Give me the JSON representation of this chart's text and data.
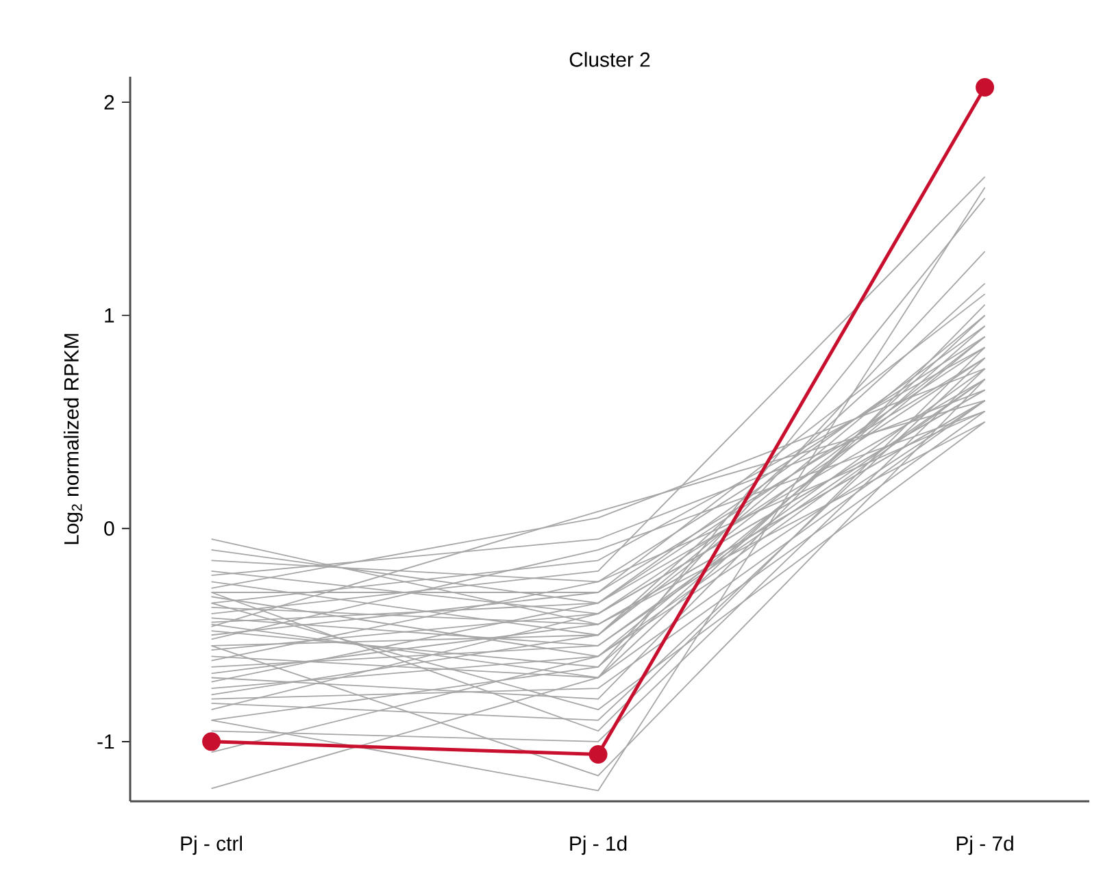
{
  "chart_data": {
    "type": "line",
    "title": "Cluster 2",
    "ylabel": "Log$_{2}$ normalized RPKM",
    "categories": [
      "Pj - ctrl",
      "Pj - 1d",
      "Pj - 7d"
    ],
    "ylim": [
      -1.28,
      2.12
    ],
    "yticks": [
      -1,
      0,
      1,
      2
    ],
    "grid": false,
    "line_style": "solid",
    "series": [
      {
        "color": "#a6a6a6",
        "values": [
          -0.05,
          -0.45,
          0.6
        ]
      },
      {
        "color": "#a6a6a6",
        "values": [
          -0.1,
          -0.35,
          0.7
        ]
      },
      {
        "color": "#a6a6a6",
        "values": [
          -0.15,
          -0.25,
          0.55
        ]
      },
      {
        "color": "#a6a6a6",
        "values": [
          -0.2,
          -0.4,
          0.8
        ]
      },
      {
        "color": "#a6a6a6",
        "values": [
          -0.22,
          -0.05,
          0.65
        ]
      },
      {
        "color": "#a6a6a6",
        "values": [
          -0.25,
          -0.5,
          0.9
        ]
      },
      {
        "color": "#a6a6a6",
        "values": [
          -0.28,
          0.05,
          0.75
        ]
      },
      {
        "color": "#a6a6a6",
        "values": [
          -0.3,
          -0.3,
          1.1
        ]
      },
      {
        "color": "#a6a6a6",
        "values": [
          -0.32,
          -0.6,
          0.6
        ]
      },
      {
        "color": "#a6a6a6",
        "values": [
          -0.35,
          -0.15,
          0.85
        ]
      },
      {
        "color": "#a6a6a6",
        "values": [
          -0.37,
          -0.45,
          0.5
        ]
      },
      {
        "color": "#a6a6a6",
        "values": [
          -0.4,
          -0.2,
          1.65
        ]
      },
      {
        "color": "#a6a6a6",
        "values": [
          -0.42,
          -0.55,
          0.7
        ]
      },
      {
        "color": "#a6a6a6",
        "values": [
          -0.44,
          -0.35,
          0.95
        ]
      },
      {
        "color": "#a6a6a6",
        "values": [
          -0.46,
          0.08,
          0.6
        ]
      },
      {
        "color": "#a6a6a6",
        "values": [
          -0.48,
          -0.65,
          1.3
        ]
      },
      {
        "color": "#a6a6a6",
        "values": [
          -0.5,
          -0.3,
          0.8
        ]
      },
      {
        "color": "#a6a6a6",
        "values": [
          -0.52,
          -0.1,
          0.55
        ]
      },
      {
        "color": "#a6a6a6",
        "values": [
          -0.55,
          -0.5,
          1.0
        ]
      },
      {
        "color": "#a6a6a6",
        "values": [
          -0.57,
          -0.4,
          0.65
        ]
      },
      {
        "color": "#a6a6a6",
        "values": [
          -0.6,
          -0.7,
          1.55
        ]
      },
      {
        "color": "#a6a6a6",
        "values": [
          -0.62,
          -0.25,
          0.9
        ]
      },
      {
        "color": "#a6a6a6",
        "values": [
          -0.65,
          -0.55,
          0.75
        ]
      },
      {
        "color": "#a6a6a6",
        "values": [
          -0.68,
          -0.45,
          0.6
        ]
      },
      {
        "color": "#a6a6a6",
        "values": [
          -0.7,
          -0.8,
          1.05
        ]
      },
      {
        "color": "#a6a6a6",
        "values": [
          -0.72,
          -0.35,
          0.85
        ]
      },
      {
        "color": "#a6a6a6",
        "values": [
          -0.75,
          -0.6,
          0.7
        ]
      },
      {
        "color": "#a6a6a6",
        "values": [
          -0.78,
          -0.5,
          1.15
        ]
      },
      {
        "color": "#a6a6a6",
        "values": [
          -0.8,
          -0.75,
          0.55
        ]
      },
      {
        "color": "#a6a6a6",
        "values": [
          -0.82,
          -0.9,
          0.8
        ]
      },
      {
        "color": "#a6a6a6",
        "values": [
          -0.85,
          -0.4,
          0.65
        ]
      },
      {
        "color": "#a6a6a6",
        "values": [
          -0.9,
          -0.65,
          0.95
        ]
      },
      {
        "color": "#a6a6a6",
        "values": [
          -0.95,
          -1.0,
          0.75
        ]
      },
      {
        "color": "#a6a6a6",
        "values": [
          -1.05,
          -0.6,
          0.9
        ]
      },
      {
        "color": "#a6a6a6",
        "values": [
          -1.22,
          -0.7,
          0.6
        ]
      },
      {
        "color": "#a6a6a6",
        "values": [
          -0.9,
          -1.23,
          1.6
        ]
      },
      {
        "color": "#a6a6a6",
        "values": [
          -0.55,
          -1.16,
          0.7
        ]
      },
      {
        "color": "#a6a6a6",
        "values": [
          -0.35,
          -0.85,
          0.5
        ]
      },
      {
        "color": "#a6a6a6",
        "values": [
          -0.3,
          -0.95,
          0.85
        ]
      },
      {
        "color": "#a6a6a6",
        "values": [
          -0.45,
          -0.7,
          1.0
        ]
      },
      {
        "color": "#c8102e",
        "values": [
          -1.0,
          -1.06,
          2.07
        ],
        "marker": "circle"
      }
    ]
  }
}
